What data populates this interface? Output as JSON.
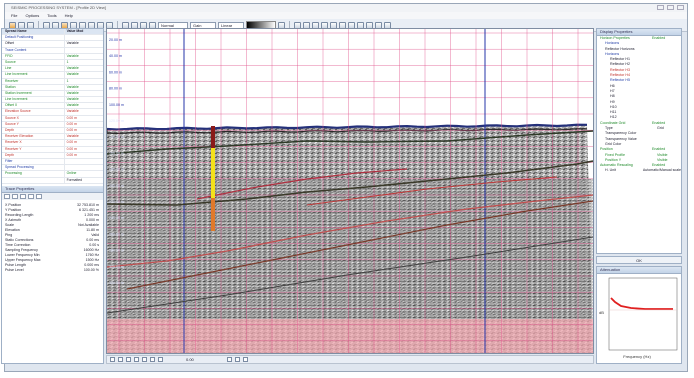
{
  "window": {
    "title": "SEISMIC PROCESSING SYSTEM - [Profile 2D View]"
  },
  "menu": [
    "File",
    "Options",
    "Tools",
    "Help"
  ],
  "toolbar": {
    "select1": "Normal",
    "select2": "Gain",
    "select3": "Linear"
  },
  "left_panel": {
    "header_name": "Spread Name",
    "header_value": "Value Mod",
    "rows": [
      {
        "k": "Default Positioning",
        "v": "",
        "c": "b"
      },
      {
        "k": "Offset",
        "v": "Variable",
        "c": ""
      },
      {
        "k": "Trace Content",
        "v": "",
        "c": "b"
      },
      {
        "k": "FFID",
        "v": "Variable",
        "c": "g"
      },
      {
        "k": "Source",
        "v": "1",
        "c": "g"
      },
      {
        "k": "Line",
        "v": "Variable",
        "c": "g"
      },
      {
        "k": "Line Increment",
        "v": "Variable",
        "c": "g"
      },
      {
        "k": "Receiver",
        "v": "1",
        "c": "g"
      },
      {
        "k": "Station",
        "v": "Variable",
        "c": "g"
      },
      {
        "k": "Station Increment",
        "v": "Variable",
        "c": "g"
      },
      {
        "k": "Line Increment",
        "v": "Variable",
        "c": "g"
      },
      {
        "k": "Offset X",
        "v": "Variable",
        "c": "g"
      },
      {
        "k": "Elevation Source",
        "v": "Variable",
        "c": "r"
      },
      {
        "k": "Source X",
        "v": "0.00 m",
        "c": "r"
      },
      {
        "k": "Source Y",
        "v": "0.00 m",
        "c": "r"
      },
      {
        "k": "Depth",
        "v": "0.00 m",
        "c": "r"
      },
      {
        "k": "Receiver Elevation",
        "v": "Variable",
        "c": "r"
      },
      {
        "k": "Receiver X",
        "v": "0.00 m",
        "c": "r"
      },
      {
        "k": "Receiver Y",
        "v": "0.00 m",
        "c": "r"
      },
      {
        "k": "Depth",
        "v": "0.00 m",
        "c": "r"
      },
      {
        "k": "Filter",
        "v": "",
        "c": "b"
      },
      {
        "k": "Spread Processing",
        "v": "",
        "c": "b"
      },
      {
        "k": "Processing",
        "v": "Online",
        "c": "g"
      },
      {
        "k": "",
        "v": "Formatted",
        "c": ""
      }
    ],
    "stats_title": "Trace Properties",
    "stats": [
      {
        "k": "X Position",
        "v": "32 753.810 m"
      },
      {
        "k": "Y Position",
        "v": "6 321.451 m"
      },
      {
        "k": "Recording Length",
        "v": "1 200 ms"
      },
      {
        "k": "X Azimuth",
        "v": "0.000 m"
      },
      {
        "k": "Scale",
        "v": "Not Available"
      },
      {
        "k": "Elevation",
        "v": "11.80 m"
      },
      {
        "k": "Ping",
        "v": "Valid"
      },
      {
        "k": "Static Corrections",
        "v": "0.00 ms"
      },
      {
        "k": "Time Correction",
        "v": "0.00 s"
      },
      {
        "k": "Sampling Frequency",
        "v": "16000 Hz"
      },
      {
        "k": "Lower Frequency Min",
        "v": "1760 Hz"
      },
      {
        "k": "Upper Frequency Max",
        "v": "1500 Hz"
      },
      {
        "k": "Pulse Length",
        "v": "0.000 ms"
      },
      {
        "k": "Pulse Level",
        "v": "100.00 %"
      }
    ]
  },
  "view": {
    "depth_labels": [
      "20.00 m",
      "40.00 m",
      "60.00 m",
      "80.00 m",
      "100.00 m",
      "120.00 m",
      "140.00 m",
      "160.00 m",
      "180.00 m",
      "200.00 m",
      "220.00 m",
      "240.00 m",
      "260.00 m",
      "280.00 m",
      "300.00 m",
      "320.00 m"
    ],
    "bottom_readout": "0.00"
  },
  "right_panel": {
    "title": "Display Properties",
    "ok_label": "OK",
    "tree": [
      {
        "t": "Horizon Properties",
        "v": "Enabled",
        "lvl": 0,
        "c": "g"
      },
      {
        "t": "Horizons",
        "v": "",
        "lvl": 1,
        "c": "b"
      },
      {
        "t": "Reflector Horizons",
        "v": "",
        "lvl": 1,
        "c": ""
      },
      {
        "t": "Horizons",
        "v": "",
        "lvl": 1,
        "c": "b"
      },
      {
        "t": "Reflector H1",
        "v": "",
        "lvl": 2,
        "c": ""
      },
      {
        "t": "Reflector H2",
        "v": "",
        "lvl": 2,
        "c": ""
      },
      {
        "t": "Reflector H3",
        "v": "",
        "lvl": 2,
        "c": "r"
      },
      {
        "t": "Reflector H4",
        "v": "",
        "lvl": 2,
        "c": "r"
      },
      {
        "t": "Reflector H5",
        "v": "",
        "lvl": 2,
        "c": "b"
      },
      {
        "t": "H6",
        "v": "",
        "lvl": 2,
        "c": ""
      },
      {
        "t": "H7",
        "v": "",
        "lvl": 2,
        "c": ""
      },
      {
        "t": "H8",
        "v": "",
        "lvl": 2,
        "c": ""
      },
      {
        "t": "H9",
        "v": "",
        "lvl": 2,
        "c": ""
      },
      {
        "t": "H10",
        "v": "",
        "lvl": 2,
        "c": ""
      },
      {
        "t": "H11",
        "v": "",
        "lvl": 2,
        "c": ""
      },
      {
        "t": "H12",
        "v": "",
        "lvl": 2,
        "c": ""
      },
      {
        "t": "Coordinate Grid",
        "v": "Enabled",
        "lvl": 0,
        "c": "g"
      },
      {
        "t": "Type",
        "v": "Grid",
        "lvl": 1,
        "c": ""
      },
      {
        "t": "Transparency Color",
        "v": "",
        "lvl": 1,
        "c": "",
        "swatch": "#c0302a"
      },
      {
        "t": "Transparency Value",
        "v": "",
        "lvl": 1,
        "c": "",
        "swatch": "#e8e8e8"
      },
      {
        "t": "Grid Color",
        "v": "",
        "lvl": 1,
        "c": "",
        "swatch": "#1a2aa8"
      },
      {
        "t": "Position",
        "v": "Enabled",
        "lvl": 0,
        "c": "g"
      },
      {
        "t": "Fixed Profile",
        "v": "Visible",
        "lvl": 1,
        "c": "g"
      },
      {
        "t": "Position Y",
        "v": "Visible",
        "lvl": 1,
        "c": "g"
      },
      {
        "t": "Automatic Rescaling",
        "v": "Enabled",
        "lvl": 0,
        "c": "g"
      },
      {
        "t": "H. Unit",
        "v": "Automatic/Manual scale",
        "lvl": 1,
        "c": ""
      }
    ]
  },
  "right_plot": {
    "title": "Attenuation",
    "ylabel": "dB",
    "xlabel": "Frequency (Hz)"
  },
  "colors": {
    "grid": "#e0508a",
    "vgrid": "#2434a8",
    "seabed": "#24307a",
    "zone": "#f2a8b0"
  }
}
